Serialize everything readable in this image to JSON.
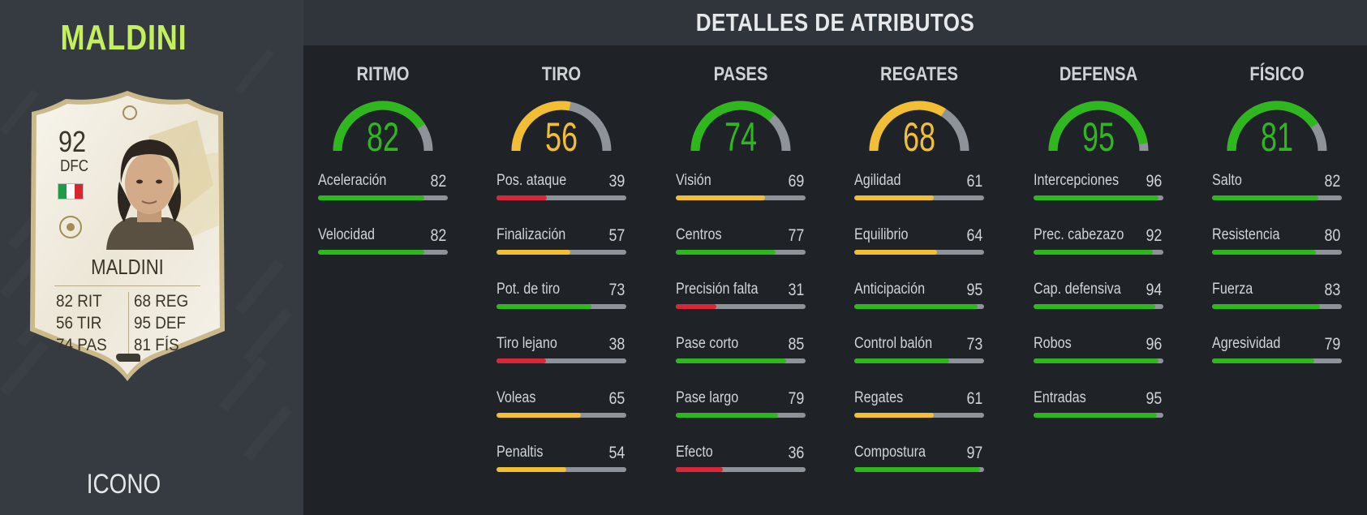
{
  "player": {
    "name": "MALDINI",
    "rarity": "ICONO",
    "card": {
      "rating": "92",
      "position": "DFC",
      "name": "MALDINI",
      "stats_left": [
        "82 RIT",
        "56 TIR",
        "74 PAS"
      ],
      "stats_right": [
        "68 REG",
        "95 DEF",
        "81 FÍS"
      ]
    }
  },
  "header": {
    "title": "DETALLES DE ATRIBUTOS"
  },
  "colors": {
    "green": "#2fb81d",
    "yellow": "#f2be33",
    "red": "#d8273a",
    "track": "#8e9399",
    "name": "#c4f05e"
  },
  "categories": [
    {
      "name": "RITMO",
      "value": 82,
      "attributes": [
        {
          "name": "Aceleración",
          "value": 82
        },
        {
          "name": "Velocidad",
          "value": 82
        }
      ]
    },
    {
      "name": "TIRO",
      "value": 56,
      "attributes": [
        {
          "name": "Pos. ataque",
          "value": 39
        },
        {
          "name": "Finalización",
          "value": 57
        },
        {
          "name": "Pot. de tiro",
          "value": 73
        },
        {
          "name": "Tiro lejano",
          "value": 38
        },
        {
          "name": "Voleas",
          "value": 65
        },
        {
          "name": "Penaltis",
          "value": 54
        }
      ]
    },
    {
      "name": "PASES",
      "value": 74,
      "attributes": [
        {
          "name": "Visión",
          "value": 69
        },
        {
          "name": "Centros",
          "value": 77
        },
        {
          "name": "Precisión falta",
          "value": 31
        },
        {
          "name": "Pase corto",
          "value": 85
        },
        {
          "name": "Pase largo",
          "value": 79
        },
        {
          "name": "Efecto",
          "value": 36
        }
      ]
    },
    {
      "name": "REGATES",
      "value": 68,
      "attributes": [
        {
          "name": "Agilidad",
          "value": 61
        },
        {
          "name": "Equilibrio",
          "value": 64
        },
        {
          "name": "Anticipación",
          "value": 95
        },
        {
          "name": "Control balón",
          "value": 73
        },
        {
          "name": "Regates",
          "value": 61
        },
        {
          "name": "Compostura",
          "value": 97
        }
      ]
    },
    {
      "name": "DEFENSA",
      "value": 95,
      "attributes": [
        {
          "name": "Intercepciones",
          "value": 96
        },
        {
          "name": "Prec. cabezazo",
          "value": 92
        },
        {
          "name": "Cap. defensiva",
          "value": 94
        },
        {
          "name": "Robos",
          "value": 96
        },
        {
          "name": "Entradas",
          "value": 95
        }
      ]
    },
    {
      "name": "FÍSICO",
      "value": 81,
      "attributes": [
        {
          "name": "Salto",
          "value": 82
        },
        {
          "name": "Resistencia",
          "value": 80
        },
        {
          "name": "Fuerza",
          "value": 83
        },
        {
          "name": "Agresividad",
          "value": 79
        }
      ]
    }
  ]
}
